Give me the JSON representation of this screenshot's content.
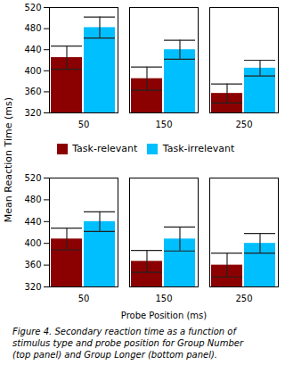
{
  "chart_data": {
    "type": "bar",
    "ylabel": "Mean Reaction Time (ms)",
    "xlabel": "Probe Position (ms)",
    "categories": [
      "50",
      "150",
      "250"
    ],
    "ylim": [
      320,
      520
    ],
    "yticks": [
      320,
      360,
      400,
      440,
      480,
      520
    ],
    "caption": "Figure 4.  Secondary reaction time as a function of\nstimulus type and probe position for Group Number\n(top panel) and Group Longer (bottom panel).",
    "panels": [
      {
        "series": [
          {
            "name": "Task-relevant",
            "color": "#8B0000",
            "values": [
              425,
              385,
              357
            ],
            "errors": [
              22,
              22,
              18
            ]
          },
          {
            "name": "Task-irrelevant",
            "color": "#00BFFF",
            "values": [
              482,
              440,
              405
            ],
            "errors": [
              20,
              18,
              15
            ]
          }
        ]
      },
      {
        "series": [
          {
            "name": "Task-relevant",
            "color": "#8B0000",
            "values": [
              408,
              367,
              360
            ],
            "errors": [
              20,
              20,
              22
            ]
          },
          {
            "name": "Task-irrelevant",
            "color": "#00BFFF",
            "values": [
              440,
              408,
              400
            ],
            "errors": [
              18,
              22,
              18
            ]
          }
        ]
      }
    ]
  }
}
